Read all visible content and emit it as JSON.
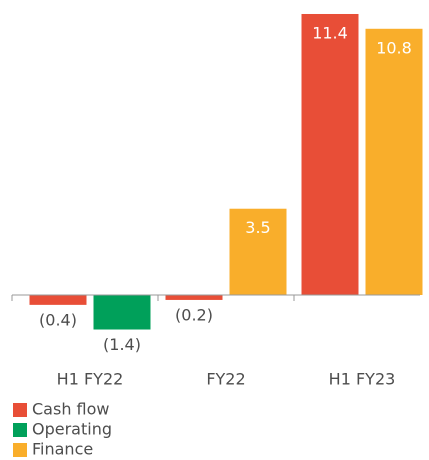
{
  "chart_data": {
    "type": "bar",
    "categories": [
      "H1 FY22",
      "FY22",
      "H1 FY23"
    ],
    "series": [
      {
        "name": "Cash flow",
        "color": "#e84e37",
        "values": [
          -0.4,
          -0.2,
          11.4
        ],
        "value_labels": [
          "(0.4)",
          "(0.2)",
          "11.4"
        ]
      },
      {
        "name": "Operating",
        "color": "#00a05a",
        "values": [
          -1.4,
          null,
          null
        ],
        "value_labels": [
          "(1.4)",
          null,
          null
        ]
      },
      {
        "name": "Finance",
        "color": "#f9ae2b",
        "values": [
          null,
          3.5,
          10.8
        ],
        "value_labels": [
          null,
          "3.5",
          "10.8"
        ]
      }
    ]
  }
}
